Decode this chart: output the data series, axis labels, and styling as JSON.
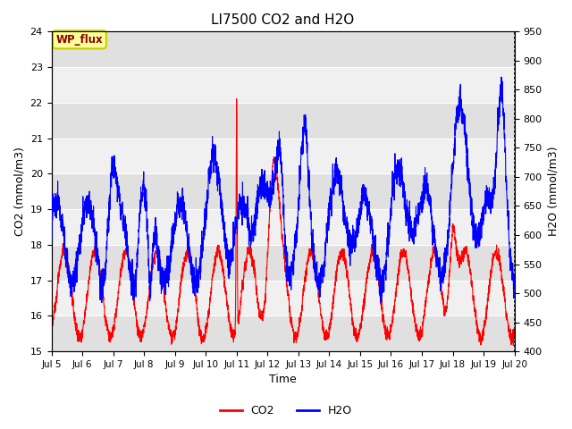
{
  "title": "LI7500 CO2 and H2O",
  "xlabel": "Time",
  "ylabel_left": "CO2 (mmol/m3)",
  "ylabel_right": "H2O (mmol/m3)",
  "ylim_left": [
    15.0,
    24.0
  ],
  "ylim_right": [
    400,
    950
  ],
  "co2_color": "#FF0000",
  "h2o_color": "#0000FF",
  "background_color": "#FFFFFF",
  "plot_bg_light": "#F0F0F0",
  "plot_bg_dark": "#E0E0E0",
  "legend_co2": "CO2",
  "legend_h2o": "H2O",
  "annotation_text": "WP_flux",
  "annotation_bg": "#FFFF99",
  "annotation_border": "#CCCC00",
  "x_tick_labels": [
    "Jul 5",
    "Jul 6",
    "Jul 7",
    "Jul 8",
    "Jul 9",
    "Jul 10",
    "Jul 11",
    "Jul 12",
    "Jul 13",
    "Jul 14",
    "Jul 15",
    "Jul 16",
    "Jul 17",
    "Jul 18",
    "Jul 19",
    "Jul 20"
  ],
  "x_tick_positions": [
    0,
    24,
    48,
    72,
    96,
    120,
    144,
    168,
    192,
    216,
    240,
    264,
    288,
    312,
    336,
    360
  ],
  "n_points": 3600
}
